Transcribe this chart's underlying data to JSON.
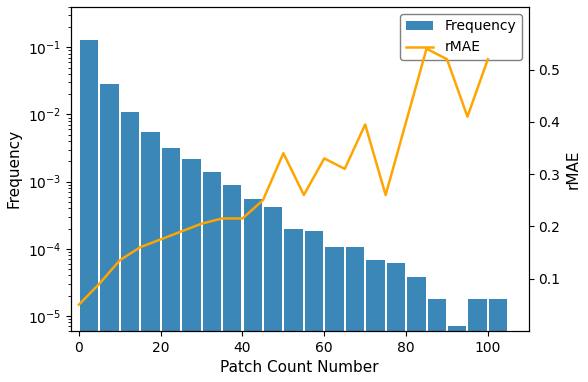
{
  "title": "",
  "xlabel": "Patch Count Number",
  "ylabel_left": "Frequency",
  "ylabel_right": "rMAE",
  "bar_color": "#3a87b8",
  "line_color": "#FFA500",
  "xlim": [
    -2,
    110
  ],
  "ylim_left": [
    6e-06,
    0.4
  ],
  "ylim_right": [
    0.0,
    0.62
  ],
  "xticks": [
    0,
    20,
    40,
    60,
    80,
    100
  ],
  "yticks_right": [
    0.1,
    0.2,
    0.3,
    0.4,
    0.5
  ],
  "bar_edges": [
    0,
    5,
    10,
    15,
    20,
    25,
    30,
    35,
    40,
    45,
    50,
    55,
    60,
    65,
    70,
    75,
    80,
    85,
    90,
    95,
    100,
    105
  ],
  "bar_heights": [
    0.13,
    0.028,
    0.011,
    0.0055,
    0.0032,
    0.0022,
    0.0014,
    0.00088,
    0.00055,
    0.00042,
    0.000195,
    0.000185,
    0.000105,
    0.000105,
    6.8e-05,
    6.2e-05,
    3.8e-05,
    1.8e-05,
    7e-06,
    1.8e-05,
    1.8e-05,
    0.0
  ],
  "rmae_x": [
    0,
    5,
    10,
    15,
    20,
    25,
    30,
    35,
    40,
    45,
    50,
    55,
    60,
    65,
    70,
    75,
    80,
    85,
    90,
    95,
    100
  ],
  "rmae_y": [
    0.05,
    0.09,
    0.135,
    0.16,
    0.175,
    0.19,
    0.205,
    0.215,
    0.215,
    0.25,
    0.34,
    0.26,
    0.33,
    0.31,
    0.395,
    0.26,
    0.4,
    0.54,
    0.52,
    0.41,
    0.52
  ],
  "legend_labels": [
    "Frequency",
    "rMAE"
  ],
  "figsize": [
    5.88,
    3.82
  ],
  "dpi": 100
}
